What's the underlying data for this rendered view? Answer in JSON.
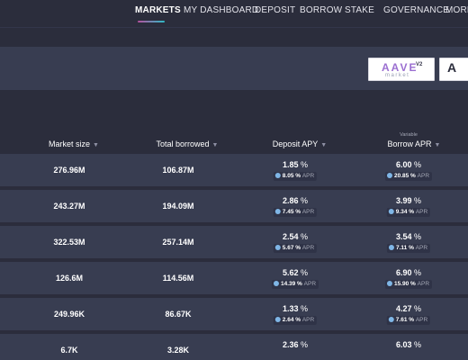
{
  "nav": {
    "items": [
      {
        "label": "MARKETS",
        "active": true
      },
      {
        "label": "MY DASHBOARD",
        "active": false
      },
      {
        "label": "DEPOSIT",
        "active": false
      },
      {
        "label": "BORROW",
        "active": false
      },
      {
        "label": "STAKE",
        "active": false
      },
      {
        "label": "GOVERNANCE",
        "active": false
      },
      {
        "label": "MORE",
        "active": false
      }
    ]
  },
  "market_switch": {
    "v2": {
      "brand": "AAVE",
      "version": "V2",
      "sub": "market"
    },
    "v1": {
      "brand": "A"
    }
  },
  "table": {
    "headers": {
      "market_size": "Market size",
      "total_borrowed": "Total borrowed",
      "deposit_apy": "Deposit APY",
      "borrow_apr": "Borrow APR",
      "borrow_apr_sub": "Variable"
    },
    "incentive_label": "APR",
    "rows": [
      {
        "market_size": "276.96M",
        "total_borrowed": "106.87M",
        "deposit_apy": "1.85",
        "deposit_incentive": "8.05",
        "borrow_apr": "6.00",
        "borrow_incentive": "20.85"
      },
      {
        "market_size": "243.27M",
        "total_borrowed": "194.09M",
        "deposit_apy": "2.86",
        "deposit_incentive": "7.45",
        "borrow_apr": "3.99",
        "borrow_incentive": "9.34"
      },
      {
        "market_size": "322.53M",
        "total_borrowed": "257.14M",
        "deposit_apy": "2.54",
        "deposit_incentive": "5.67",
        "borrow_apr": "3.54",
        "borrow_incentive": "7.11"
      },
      {
        "market_size": "126.6M",
        "total_borrowed": "114.56M",
        "deposit_apy": "5.62",
        "deposit_incentive": "14.39",
        "borrow_apr": "6.90",
        "borrow_incentive": "15.90"
      },
      {
        "market_size": "249.96K",
        "total_borrowed": "86.67K",
        "deposit_apy": "1.33",
        "deposit_incentive": "2.64",
        "borrow_apr": "4.27",
        "borrow_incentive": "7.61"
      },
      {
        "market_size": "6.7K",
        "total_borrowed": "3.28K",
        "deposit_apy": "2.36",
        "borrow_apr": "6.03"
      }
    ]
  },
  "colors": {
    "background": "#2b2d3c",
    "row": "#383d51",
    "accent_gradient_start": "#b6509e",
    "accent_gradient_end": "#2ebac6"
  }
}
